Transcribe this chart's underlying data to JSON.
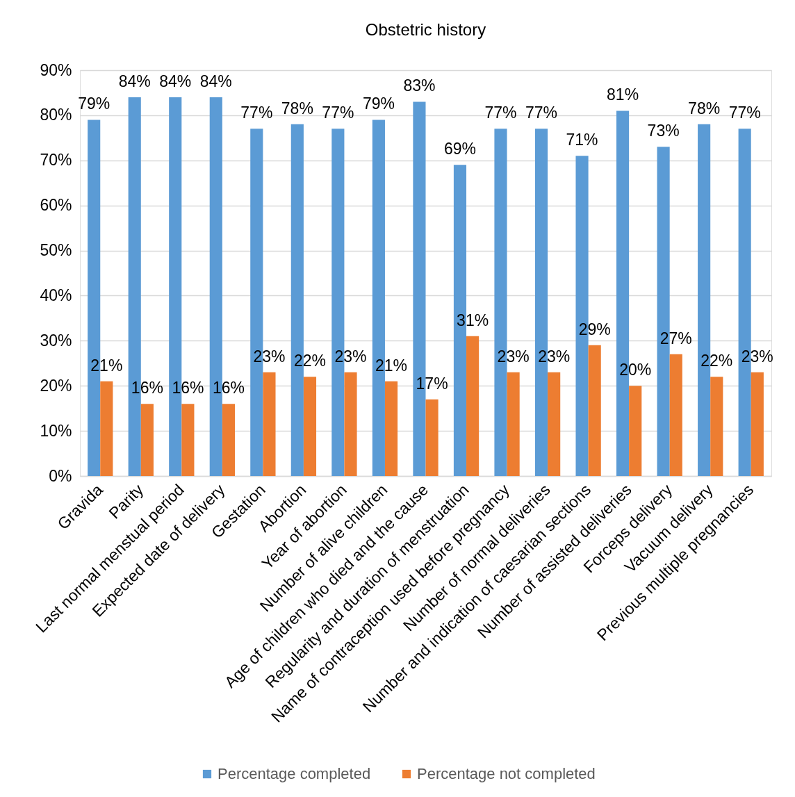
{
  "chart_data": {
    "type": "bar",
    "title": "Obstetric history",
    "categories": [
      "Gravida",
      "Parity",
      "Last normal menstual period",
      "Expected date of delivery",
      "Gestation",
      "Abortion",
      "Year of abortion",
      "Number of alive children",
      "Age of children who died and the cause",
      "Regularity  and duration of menstruation",
      "Name of contraception used before pregnancy",
      "Number of normal deliveries",
      "Number and indication of caesarian sections",
      "Number of assisted deliveries",
      "Forceps delivery",
      "Vacuum delivery",
      "Previous multiple pregnancies"
    ],
    "series": [
      {
        "name": "Percentage completed",
        "color": "#5b9bd5",
        "values": [
          79,
          84,
          84,
          84,
          77,
          78,
          77,
          79,
          83,
          69,
          77,
          77,
          71,
          81,
          73,
          78,
          77
        ],
        "value_labels": [
          "79%",
          "84%",
          "84%",
          "84%",
          "77%",
          "78%",
          "77%",
          "79%",
          "83%",
          "69%",
          "77%",
          "77%",
          "71%",
          "81%",
          "73%",
          "78%",
          "77%"
        ]
      },
      {
        "name": "Percentage not completed",
        "color": "#ed7d31",
        "values": [
          21,
          16,
          16,
          16,
          23,
          22,
          23,
          21,
          17,
          31,
          23,
          23,
          29,
          20,
          27,
          22,
          23
        ],
        "value_labels": [
          "21%",
          "16%",
          "16%",
          "16%",
          "23%",
          "22%",
          "23%",
          "21%",
          "17%",
          "31%",
          "23%",
          "23%",
          "29%",
          "20%",
          "27%",
          "22%",
          "23%"
        ]
      }
    ],
    "ylim": [
      0,
      90
    ],
    "yticks": [
      {
        "value": 0,
        "label": "0%"
      },
      {
        "value": 10,
        "label": "10%"
      },
      {
        "value": 20,
        "label": "20%"
      },
      {
        "value": 30,
        "label": "30%"
      },
      {
        "value": 40,
        "label": "40%"
      },
      {
        "value": 50,
        "label": "50%"
      },
      {
        "value": 60,
        "label": "60%"
      },
      {
        "value": 70,
        "label": "70%"
      },
      {
        "value": 80,
        "label": "80%"
      },
      {
        "value": 90,
        "label": "90%"
      }
    ],
    "grid": "y",
    "legend": "bottom"
  }
}
